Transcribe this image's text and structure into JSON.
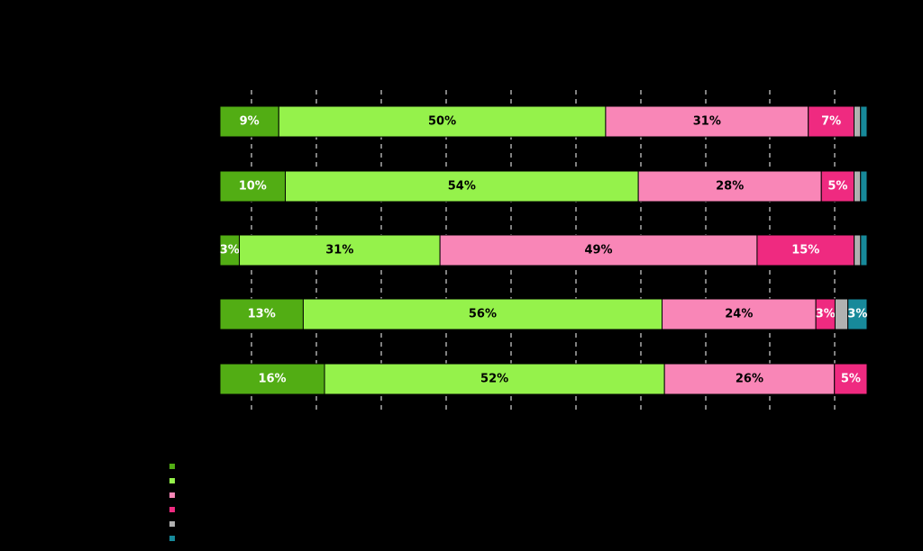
{
  "chart_data": {
    "type": "bar",
    "orientation": "horizontal",
    "stacked": true,
    "percent_scale": true,
    "background": "#000000",
    "grid": true,
    "categories": [
      "",
      "",
      "",
      "",
      ""
    ],
    "series": [
      {
        "color": "#52ad14",
        "values": [
          9,
          10,
          3,
          13,
          16
        ]
      },
      {
        "color": "#95f24b",
        "values": [
          50,
          54,
          31,
          56,
          52
        ]
      },
      {
        "color": "#f986b7",
        "values": [
          31,
          28,
          49,
          24,
          26
        ]
      },
      {
        "color": "#ef2a80",
        "values": [
          7,
          5,
          15,
          3,
          5
        ]
      },
      {
        "color": "#b1b1b1",
        "values": [
          1,
          1,
          1,
          2,
          0
        ]
      },
      {
        "color": "#17899a",
        "values": [
          1,
          1,
          1,
          3,
          0
        ]
      }
    ],
    "data_labels": [
      [
        "9%",
        "50%",
        "31%",
        "7%",
        "",
        ""
      ],
      [
        "10%",
        "54%",
        "28%",
        "5%",
        "",
        ""
      ],
      [
        "3%",
        "31%",
        "49%",
        "15%",
        "",
        ""
      ],
      [
        "13%",
        "56%",
        "24%",
        "3%",
        "",
        "3%"
      ],
      [
        "16%",
        "52%",
        "26%",
        "5%",
        "",
        ""
      ]
    ],
    "label_colors": [
      "#ffffff",
      "#000000",
      "#000000",
      "#ffffff",
      "#000000",
      "#ffffff"
    ],
    "legend_position": "bottom-left"
  }
}
